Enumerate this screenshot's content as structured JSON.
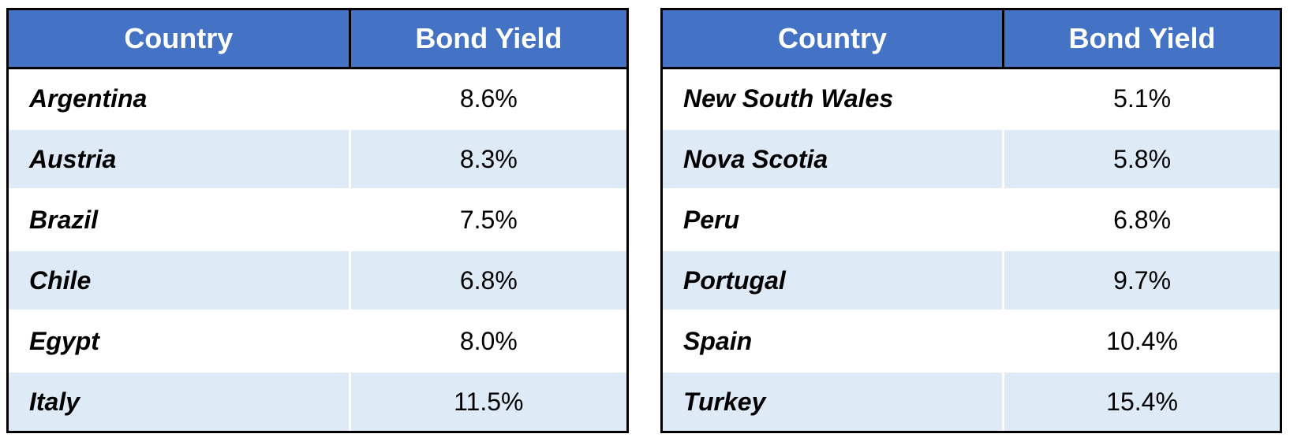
{
  "colors": {
    "header_bg": "#4472C4",
    "header_text": "#FFFFFF",
    "band_row_bg": "#DEEAF6",
    "border": "#000000",
    "body_text": "#000000"
  },
  "tables": [
    {
      "headers": {
        "country": "Country",
        "yield": "Bond Yield"
      },
      "rows": [
        {
          "country": "Argentina",
          "yield": "8.6%"
        },
        {
          "country": "Austria",
          "yield": "8.3%"
        },
        {
          "country": "Brazil",
          "yield": "7.5%"
        },
        {
          "country": "Chile",
          "yield": "6.8%"
        },
        {
          "country": "Egypt",
          "yield": "8.0%"
        },
        {
          "country": "Italy",
          "yield": "11.5%"
        }
      ]
    },
    {
      "headers": {
        "country": "Country",
        "yield": "Bond Yield"
      },
      "rows": [
        {
          "country": "New South Wales",
          "yield": "5.1%"
        },
        {
          "country": "Nova Scotia",
          "yield": "5.8%"
        },
        {
          "country": "Peru",
          "yield": "6.8%"
        },
        {
          "country": "Portugal",
          "yield": "9.7%"
        },
        {
          "country": "Spain",
          "yield": "10.4%"
        },
        {
          "country": "Turkey",
          "yield": "15.4%"
        }
      ]
    }
  ],
  "chart_data": [
    {
      "type": "table",
      "title": "",
      "columns": [
        "Country",
        "Bond Yield"
      ],
      "categories": [
        "Argentina",
        "Austria",
        "Brazil",
        "Chile",
        "Egypt",
        "Italy"
      ],
      "values": [
        8.6,
        8.3,
        7.5,
        6.8,
        8.0,
        11.5
      ],
      "value_unit": "%"
    },
    {
      "type": "table",
      "title": "",
      "columns": [
        "Country",
        "Bond Yield"
      ],
      "categories": [
        "New South Wales",
        "Nova Scotia",
        "Peru",
        "Portugal",
        "Spain",
        "Turkey"
      ],
      "values": [
        5.1,
        5.8,
        6.8,
        9.7,
        10.4,
        15.4
      ],
      "value_unit": "%"
    }
  ]
}
